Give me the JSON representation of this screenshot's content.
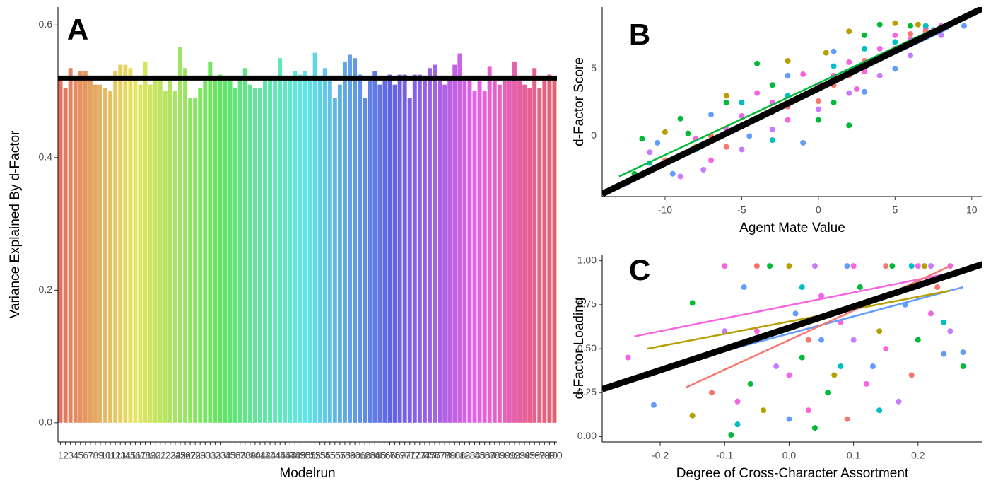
{
  "chart_data": [
    {
      "type": "bar",
      "panel_label": "A",
      "x_label": "Modelrun",
      "y_label": "Variance Explained By d-Factor",
      "palette": "hue",
      "categories": [
        "1",
        "2",
        "3",
        "4",
        "5",
        "6",
        "7",
        "8",
        "9",
        "10",
        "11",
        "12",
        "13",
        "14",
        "15",
        "16",
        "17",
        "18",
        "19",
        "20",
        "21",
        "22",
        "23",
        "24",
        "25",
        "26",
        "27",
        "28",
        "29",
        "30",
        "31",
        "32",
        "33",
        "34",
        "35",
        "36",
        "37",
        "38",
        "39",
        "40",
        "41",
        "42",
        "43",
        "44",
        "45",
        "46",
        "47",
        "48",
        "49",
        "50",
        "51",
        "52",
        "53",
        "54",
        "55",
        "56",
        "57",
        "58",
        "59",
        "60",
        "61",
        "62",
        "63",
        "64",
        "65",
        "66",
        "67",
        "68",
        "69",
        "70",
        "71",
        "72",
        "73",
        "74",
        "75",
        "76",
        "77",
        "78",
        "79",
        "80",
        "81",
        "82",
        "83",
        "84",
        "85",
        "86",
        "87",
        "88",
        "89",
        "90",
        "91",
        "92",
        "93",
        "94",
        "95",
        "96",
        "97",
        "98",
        "99",
        "100"
      ],
      "values": [
        0.52,
        0.505,
        0.535,
        0.52,
        0.53,
        0.53,
        0.52,
        0.51,
        0.51,
        0.505,
        0.5,
        0.53,
        0.54,
        0.54,
        0.535,
        0.52,
        0.51,
        0.545,
        0.51,
        0.52,
        0.52,
        0.5,
        0.515,
        0.5,
        0.567,
        0.535,
        0.49,
        0.49,
        0.505,
        0.515,
        0.545,
        0.52,
        0.525,
        0.515,
        0.515,
        0.505,
        0.52,
        0.535,
        0.51,
        0.505,
        0.505,
        0.52,
        0.52,
        0.515,
        0.55,
        0.52,
        0.52,
        0.53,
        0.525,
        0.53,
        0.515,
        0.558,
        0.52,
        0.535,
        0.515,
        0.49,
        0.51,
        0.545,
        0.555,
        0.55,
        0.525,
        0.49,
        0.515,
        0.53,
        0.51,
        0.515,
        0.525,
        0.51,
        0.525,
        0.525,
        0.49,
        0.525,
        0.525,
        0.52,
        0.535,
        0.54,
        0.515,
        0.51,
        0.52,
        0.54,
        0.557,
        0.515,
        0.52,
        0.5,
        0.515,
        0.5,
        0.537,
        0.515,
        0.51,
        0.515,
        0.515,
        0.545,
        0.515,
        0.51,
        0.505,
        0.535,
        0.505,
        0.52,
        0.525,
        0.52
      ],
      "hline": 0.52,
      "hline_color": "#000000",
      "ylim": [
        -0.029,
        0.627
      ],
      "yticks": [
        {
          "value": 0,
          "label": "0.0"
        },
        0.2,
        0.4,
        0.6
      ]
    },
    {
      "type": "scatter",
      "panel_label": "B",
      "x_label": "Agent Mate Value",
      "y_label": "d-Factor Score",
      "xlim": [
        -14.1,
        10.7
      ],
      "ylim": [
        -4.5,
        9.6
      ],
      "xticks": [
        -10,
        -5,
        0,
        5,
        10
      ],
      "yticks": [
        0,
        5
      ],
      "series": [
        {
          "color": "#F564E3",
          "x": [
            -11,
            -9,
            -8,
            -6,
            -5,
            -3,
            -2,
            0,
            1,
            2,
            3,
            4,
            5,
            6,
            7,
            8,
            -4,
            -1,
            2.5,
            -7
          ],
          "y": [
            -2.5,
            -1.5,
            -0.2,
            0.5,
            1.5,
            2.5,
            1.2,
            3.8,
            4.5,
            5.5,
            4.8,
            6.5,
            7.5,
            7.2,
            8,
            8.2,
            3.2,
            4.6,
            3.5,
            -1.8
          ]
        },
        {
          "color": "#F8766D",
          "x": [
            -10,
            -7,
            -5,
            -3,
            -1,
            0,
            1,
            2,
            3,
            4,
            5,
            6,
            7,
            8,
            -2,
            -6
          ],
          "y": [
            -1.8,
            0,
            0.8,
            1.8,
            3,
            2.6,
            3.8,
            4.5,
            5.6,
            5.8,
            6.5,
            7.6,
            7.8,
            8.1,
            2.2,
            -0.8
          ]
        },
        {
          "color": "#00BA38",
          "x": [
            -11.5,
            -9,
            -8.5,
            -6,
            -4,
            -3,
            0,
            1,
            3,
            4,
            6,
            -12,
            2
          ],
          "y": [
            -0.2,
            1.3,
            0.2,
            2.5,
            5.4,
            3.8,
            1.2,
            2.5,
            7.5,
            8.3,
            8.2,
            -2.8,
            0.8
          ]
        },
        {
          "color": "#619CFF",
          "x": [
            -12.5,
            -10.5,
            -9.5,
            -7,
            -4.5,
            -2,
            1,
            3,
            5,
            7.5,
            9.5,
            -1
          ],
          "y": [
            -3.5,
            -0.5,
            -2.8,
            1.6,
            0,
            4.5,
            6.3,
            3.3,
            5,
            7.9,
            8.2,
            -0.5
          ]
        },
        {
          "color": "#C77CFF",
          "x": [
            -9,
            -7.5,
            -5,
            -3,
            0,
            2,
            4,
            6,
            8,
            -11
          ],
          "y": [
            -3,
            -2.5,
            -1,
            0.5,
            2,
            3.2,
            4.5,
            6,
            7.5,
            -1.2
          ]
        },
        {
          "color": "#B79F00",
          "x": [
            -10,
            -8,
            -6,
            -2,
            0.5,
            2,
            5,
            6.5
          ],
          "y": [
            0.3,
            -0.8,
            3,
            5.6,
            6.2,
            7.8,
            8.4,
            8.3
          ]
        },
        {
          "color": "#00BFC4",
          "x": [
            -11,
            -8,
            -5,
            -2,
            1,
            3,
            5,
            7,
            -3
          ],
          "y": [
            -2,
            -1,
            2.5,
            3,
            5.2,
            6.5,
            7,
            8.2,
            -0.3
          ]
        }
      ],
      "fit_lines": [
        {
          "color": "#00BA38",
          "x": [
            -13,
            8
          ],
          "y": [
            -3,
            8.2
          ]
        },
        {
          "color": "#619CFF",
          "x": [
            -12.5,
            8.5
          ],
          "y": [
            -3.2,
            8
          ]
        },
        {
          "color": "#000000",
          "x": [
            -14.1,
            10.7
          ],
          "y": [
            -4.3,
            9.5
          ]
        }
      ]
    },
    {
      "type": "scatter",
      "panel_label": "C",
      "x_label": "Degree of Cross-Character Assortment",
      "y_label": "d-Factor Loading",
      "xlim": [
        -0.29,
        0.3
      ],
      "ylim": [
        -0.03,
        1.035
      ],
      "xticks": [
        -0.2,
        -0.1,
        {
          "value": 0,
          "label": "0.0"
        },
        0.1,
        0.2
      ],
      "yticks": [
        {
          "value": 0,
          "label": "0.00"
        },
        0.25,
        {
          "value": 0.5,
          "label": "0.50"
        },
        0.75,
        {
          "value": 1,
          "label": "1.00"
        }
      ],
      "series": [
        {
          "color": "#F564E3",
          "x": [
            -0.25,
            -0.1,
            -0.05,
            0,
            0.05,
            0.1,
            0.15,
            0.2,
            0.22,
            0.03,
            -0.08,
            0.12,
            0.25,
            0.08
          ],
          "y": [
            0.45,
            0.97,
            0.6,
            0.35,
            0.8,
            0.97,
            0.5,
            0.97,
            0.7,
            0.15,
            0.2,
            0.3,
            0.97,
            0.65
          ]
        },
        {
          "color": "#00BA38",
          "x": [
            -0.15,
            -0.09,
            -0.03,
            0.02,
            0.06,
            0.11,
            0.16,
            0.2,
            0.27,
            0.04,
            -0.06
          ],
          "y": [
            0.76,
            0.01,
            0.97,
            0.45,
            0.25,
            0.85,
            0.97,
            0.55,
            0.4,
            0.05,
            0.3
          ]
        },
        {
          "color": "#619CFF",
          "x": [
            -0.21,
            -0.07,
            0,
            0.05,
            0.09,
            0.13,
            0.18,
            0.24,
            0.27,
            0.01
          ],
          "y": [
            0.18,
            0.85,
            0.1,
            0.55,
            0.97,
            0.4,
            0.75,
            0.47,
            0.48,
            0.7
          ]
        },
        {
          "color": "#B79F00",
          "x": [
            -0.15,
            -0.1,
            0,
            0.07,
            0.14,
            0.21,
            0.26,
            -0.04
          ],
          "y": [
            0.12,
            0.5,
            0.97,
            0.35,
            0.6,
            0.97,
            0.93,
            0.15
          ]
        },
        {
          "color": "#C77CFF",
          "x": [
            -0.1,
            -0.02,
            0.04,
            0.1,
            0.17,
            0.22,
            0.25
          ],
          "y": [
            0.6,
            0.4,
            0.97,
            0.55,
            0.2,
            0.97,
            0.6
          ]
        },
        {
          "color": "#F8766D",
          "x": [
            -0.12,
            -0.05,
            0.03,
            0.09,
            0.15,
            0.19,
            0.23
          ],
          "y": [
            0.25,
            0.97,
            0.55,
            0.1,
            0.97,
            0.35,
            0.85
          ]
        },
        {
          "color": "#00BFC4",
          "x": [
            -0.08,
            0.02,
            0.08,
            0.14,
            0.19,
            0.24
          ],
          "y": [
            0.07,
            0.85,
            0.4,
            0.15,
            0.97,
            0.65
          ]
        }
      ],
      "fit_lines": [
        {
          "color": "#F564E3",
          "x": [
            -0.24,
            0.25
          ],
          "y": [
            0.57,
            0.93
          ]
        },
        {
          "color": "#619CFF",
          "x": [
            -0.21,
            0.27
          ],
          "y": [
            0.38,
            0.85
          ]
        },
        {
          "color": "#B79F00",
          "x": [
            -0.22,
            0.25
          ],
          "y": [
            0.5,
            0.83
          ]
        },
        {
          "color": "#F8766D",
          "x": [
            -0.16,
            0.25
          ],
          "y": [
            0.28,
            0.97
          ]
        },
        {
          "color": "#000000",
          "x": [
            -0.29,
            0.3
          ],
          "y": [
            0.27,
            0.98
          ]
        }
      ]
    }
  ]
}
